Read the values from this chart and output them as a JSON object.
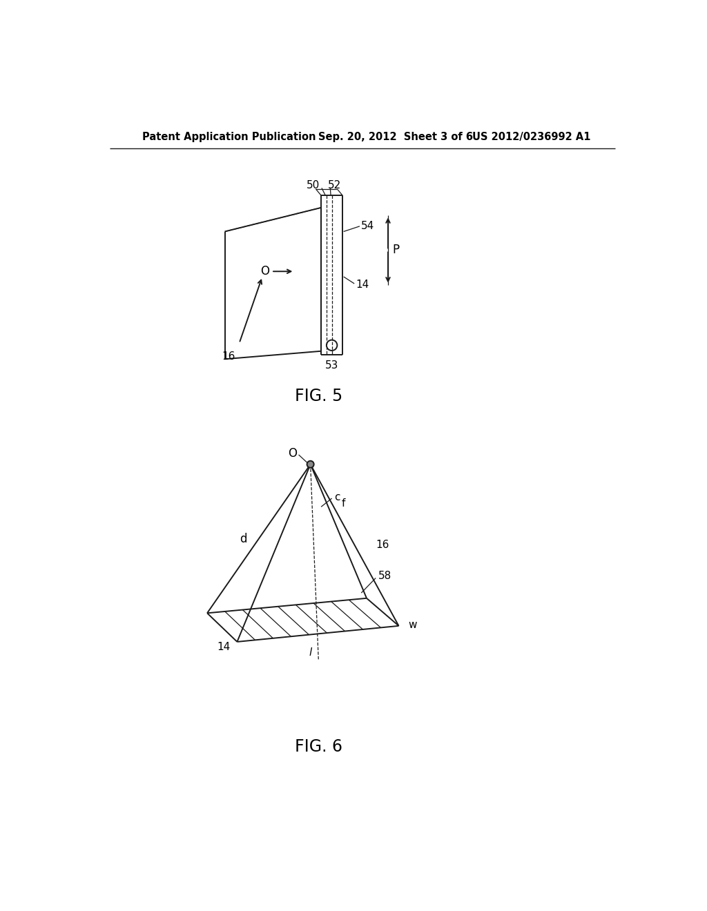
{
  "bg_color": "#ffffff",
  "text_color": "#000000",
  "header_left": "Patent Application Publication",
  "header_mid": "Sep. 20, 2012  Sheet 3 of 6",
  "header_right": "US 2012/0236992 A1",
  "fig5_label": "FIG. 5",
  "fig6_label": "FIG. 6",
  "line_color": "#1a1a1a",
  "line_width": 1.4,
  "thin_line": 0.9
}
